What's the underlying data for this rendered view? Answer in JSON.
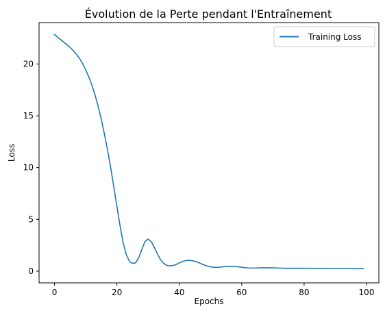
{
  "chart_data": {
    "type": "line",
    "title": "Évolution de la Perte pendant l'Entraînement",
    "xlabel": "Epochs",
    "ylabel": "Loss",
    "xlim": [
      -4.95,
      103.95
    ],
    "ylim": [
      -1.13,
      24.0
    ],
    "xticks": [
      0,
      20,
      40,
      60,
      80,
      100
    ],
    "yticks": [
      0,
      5,
      10,
      15,
      20
    ],
    "grid": false,
    "legend": {
      "placement": "top-right"
    },
    "series": [
      {
        "name": "Training Loss",
        "color": "#1f77b4",
        "x": [
          0,
          1,
          2,
          3,
          4,
          5,
          6,
          7,
          8,
          9,
          10,
          11,
          12,
          13,
          14,
          15,
          16,
          17,
          18,
          19,
          20,
          21,
          22,
          23,
          24,
          25,
          26,
          27,
          28,
          29,
          30,
          31,
          32,
          33,
          34,
          35,
          36,
          37,
          38,
          39,
          40,
          41,
          42,
          43,
          44,
          45,
          46,
          47,
          48,
          49,
          50,
          51,
          52,
          53,
          54,
          55,
          56,
          57,
          58,
          59,
          60,
          61,
          62,
          63,
          64,
          65,
          66,
          67,
          68,
          69,
          70,
          71,
          72,
          73,
          74,
          75,
          76,
          77,
          78,
          79,
          80,
          81,
          82,
          83,
          84,
          85,
          86,
          87,
          88,
          89,
          90,
          91,
          92,
          93,
          94,
          95,
          96,
          97,
          98,
          99
        ],
        "values": [
          22.85,
          22.6,
          22.35,
          22.1,
          21.85,
          21.6,
          21.3,
          20.95,
          20.55,
          20.05,
          19.45,
          18.75,
          17.95,
          17.0,
          15.9,
          14.65,
          13.25,
          11.7,
          10.0,
          8.15,
          6.25,
          4.4,
          2.75,
          1.6,
          0.95,
          0.75,
          0.8,
          1.3,
          2.1,
          2.85,
          3.1,
          2.85,
          2.3,
          1.65,
          1.1,
          0.75,
          0.55,
          0.5,
          0.55,
          0.65,
          0.8,
          0.93,
          1.02,
          1.05,
          1.02,
          0.95,
          0.85,
          0.72,
          0.6,
          0.5,
          0.42,
          0.38,
          0.37,
          0.39,
          0.42,
          0.45,
          0.47,
          0.47,
          0.45,
          0.42,
          0.38,
          0.34,
          0.31,
          0.3,
          0.3,
          0.31,
          0.32,
          0.33,
          0.33,
          0.33,
          0.32,
          0.31,
          0.3,
          0.29,
          0.28,
          0.28,
          0.28,
          0.28,
          0.28,
          0.28,
          0.28,
          0.28,
          0.27,
          0.27,
          0.26,
          0.26,
          0.26,
          0.25,
          0.25,
          0.25,
          0.25,
          0.25,
          0.25,
          0.25,
          0.25,
          0.24,
          0.24,
          0.24,
          0.24,
          0.24
        ]
      }
    ]
  }
}
